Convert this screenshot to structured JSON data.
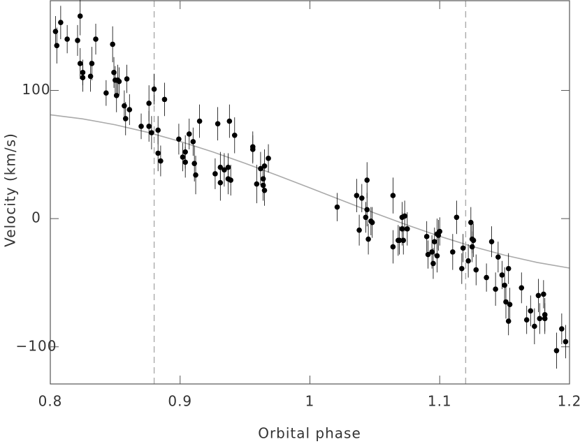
{
  "chart_data": {
    "type": "scatter",
    "xlabel": "Orbital phase",
    "ylabel": "Velocity (km/s)",
    "xlim": [
      0.8,
      1.2
    ],
    "ylim": [
      -129,
      170
    ],
    "xticks": [
      {
        "value": 0.8,
        "label": "0.8"
      },
      {
        "value": 0.9,
        "label": "0.9"
      },
      1,
      {
        "value": 1.1,
        "label": "1.1"
      },
      {
        "value": 1.2,
        "label": "1.2"
      }
    ],
    "yticks": [
      {
        "value": -100,
        "label": "−100"
      },
      0,
      100
    ],
    "point_color": "#000000",
    "x": [
      0.804,
      0.805,
      0.808,
      0.813,
      0.821,
      0.823,
      0.823,
      0.825,
      0.825,
      0.831,
      0.832,
      0.835,
      0.843,
      0.848,
      0.849,
      0.85,
      0.851,
      0.852,
      0.853,
      0.857,
      0.858,
      0.859,
      0.861,
      0.87,
      0.876,
      0.876,
      0.878,
      0.88,
      0.883,
      0.883,
      0.885,
      0.888,
      0.899,
      0.902,
      0.904,
      0.904,
      0.907,
      0.91,
      0.911,
      0.912,
      0.915,
      0.927,
      0.929,
      0.931,
      0.931,
      0.934,
      0.937,
      0.937,
      0.938,
      0.939,
      0.942,
      0.956,
      0.956,
      0.959,
      0.962,
      0.964,
      0.964,
      0.965,
      0.965,
      0.968,
      1.021,
      1.036,
      1.038,
      1.04,
      1.043,
      1.044,
      1.044,
      1.045,
      1.047,
      1.048,
      1.064,
      1.064,
      1.068,
      1.069,
      1.071,
      1.071,
      1.072,
      1.073,
      1.075,
      1.09,
      1.091,
      1.094,
      1.095,
      1.096,
      1.098,
      1.098,
      1.099,
      1.1,
      1.11,
      1.113,
      1.117,
      1.118,
      1.122,
      1.124,
      1.125,
      1.125,
      1.126,
      1.128,
      1.136,
      1.14,
      1.143,
      1.145,
      1.148,
      1.15,
      1.151,
      1.153,
      1.153,
      1.154,
      1.163,
      1.167,
      1.17,
      1.173,
      1.176,
      1.177,
      1.18,
      1.181,
      1.181,
      1.19,
      1.194,
      1.197
    ],
    "y": [
      146,
      135,
      153,
      140,
      139,
      158,
      121,
      114,
      110,
      111,
      121,
      140,
      98,
      136,
      114,
      108,
      96,
      108,
      107,
      88,
      78,
      109,
      85,
      72,
      90,
      72,
      67,
      101,
      69,
      51,
      45,
      93,
      62,
      48,
      44,
      52,
      66,
      60,
      43,
      34,
      76,
      35,
      74,
      28,
      40,
      38,
      40,
      31,
      76,
      30,
      65,
      56,
      54,
      27,
      39,
      26,
      31,
      41,
      22,
      47,
      9,
      18,
      -9,
      16,
      1,
      30,
      7,
      -16,
      -2,
      -3,
      18,
      -22,
      -17,
      -17,
      -8,
      1,
      -17,
      2,
      -8,
      -14,
      -28,
      -26,
      -35,
      -18,
      -12,
      -29,
      -13,
      -10,
      -26,
      1,
      -39,
      -23,
      -33,
      -3,
      -16,
      -22,
      -17,
      -40,
      -46,
      -18,
      -55,
      -30,
      -44,
      -52,
      -65,
      -39,
      -80,
      -67,
      -54,
      -79,
      -72,
      -84,
      -60,
      -78,
      -59,
      -78,
      -75,
      -103,
      -86,
      -96
    ],
    "yerr": [
      12,
      14,
      13,
      11,
      12,
      15,
      12,
      10,
      11,
      12,
      13,
      12,
      10,
      14,
      12,
      11,
      13,
      12,
      11,
      12,
      13,
      11,
      12,
      10,
      14,
      12,
      13,
      12,
      11,
      14,
      12,
      13,
      12,
      11,
      12,
      13,
      12,
      11,
      14,
      15,
      13,
      12,
      13,
      14,
      12,
      13,
      11,
      12,
      13,
      12,
      14,
      12,
      11,
      15,
      13,
      12,
      11,
      13,
      12,
      11,
      11,
      13,
      12,
      11,
      12,
      14,
      13,
      12,
      11,
      12,
      14,
      13,
      12,
      11,
      13,
      12,
      11,
      12,
      13,
      12,
      11,
      13,
      12,
      11,
      12,
      13,
      12,
      11,
      14,
      13,
      12,
      11,
      13,
      12,
      11,
      12,
      13,
      12,
      11,
      12,
      13,
      12,
      11,
      14,
      13,
      12,
      11,
      13,
      12,
      11,
      12,
      14,
      13,
      12,
      11,
      12,
      13,
      14,
      12,
      13
    ],
    "model_curve": {
      "color": "#aaaaaa",
      "x": [
        0.8,
        0.825,
        0.85,
        0.875,
        0.9,
        0.925,
        0.95,
        0.975,
        1.0,
        1.025,
        1.05,
        1.075,
        1.1,
        1.125,
        1.15,
        1.175,
        1.2
      ],
      "y": [
        81.0,
        77.8,
        73.2,
        67.3,
        60.2,
        52.1,
        43.2,
        33.7,
        24.0,
        14.1,
        4.3,
        -5.0,
        -13.8,
        -21.7,
        -28.5,
        -34.2,
        -38.6
      ]
    },
    "vlines": {
      "x": [
        0.88,
        1.12
      ],
      "color": "#aaaaaa",
      "dashed": true
    }
  }
}
